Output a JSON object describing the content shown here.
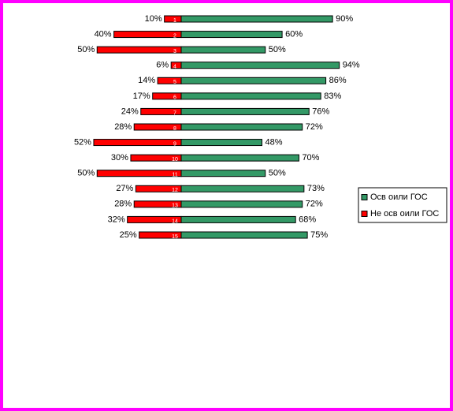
{
  "chart_data": {
    "type": "diverging-bar",
    "categories": [
      "1",
      "2",
      "3",
      "4",
      "5",
      "6",
      "7",
      "8",
      "9",
      "10",
      "11",
      "12",
      "13",
      "14",
      "15"
    ],
    "series": [
      {
        "name": "Осв оили ГОС",
        "color": "#339966",
        "values": [
          90,
          60,
          50,
          94,
          86,
          83,
          76,
          72,
          48,
          70,
          50,
          73,
          72,
          68,
          75
        ],
        "value_labels": [
          "90%",
          "60%",
          "50%",
          "94%",
          "86%",
          "83%",
          "76%",
          "72%",
          "48%",
          "70%",
          "50%",
          "73%",
          "72%",
          "68%",
          "75%"
        ]
      },
      {
        "name": "Не осв оили ГОС",
        "color": "#ff0000",
        "values": [
          10,
          40,
          50,
          6,
          14,
          17,
          24,
          28,
          52,
          30,
          50,
          27,
          28,
          32,
          25
        ],
        "value_labels": [
          "10%",
          "40%",
          "50%",
          "6%",
          "14%",
          "17%",
          "24%",
          "28%",
          "52%",
          "30%",
          "50%",
          "27%",
          "28%",
          "32%",
          "25%"
        ]
      }
    ],
    "legend": "right"
  }
}
